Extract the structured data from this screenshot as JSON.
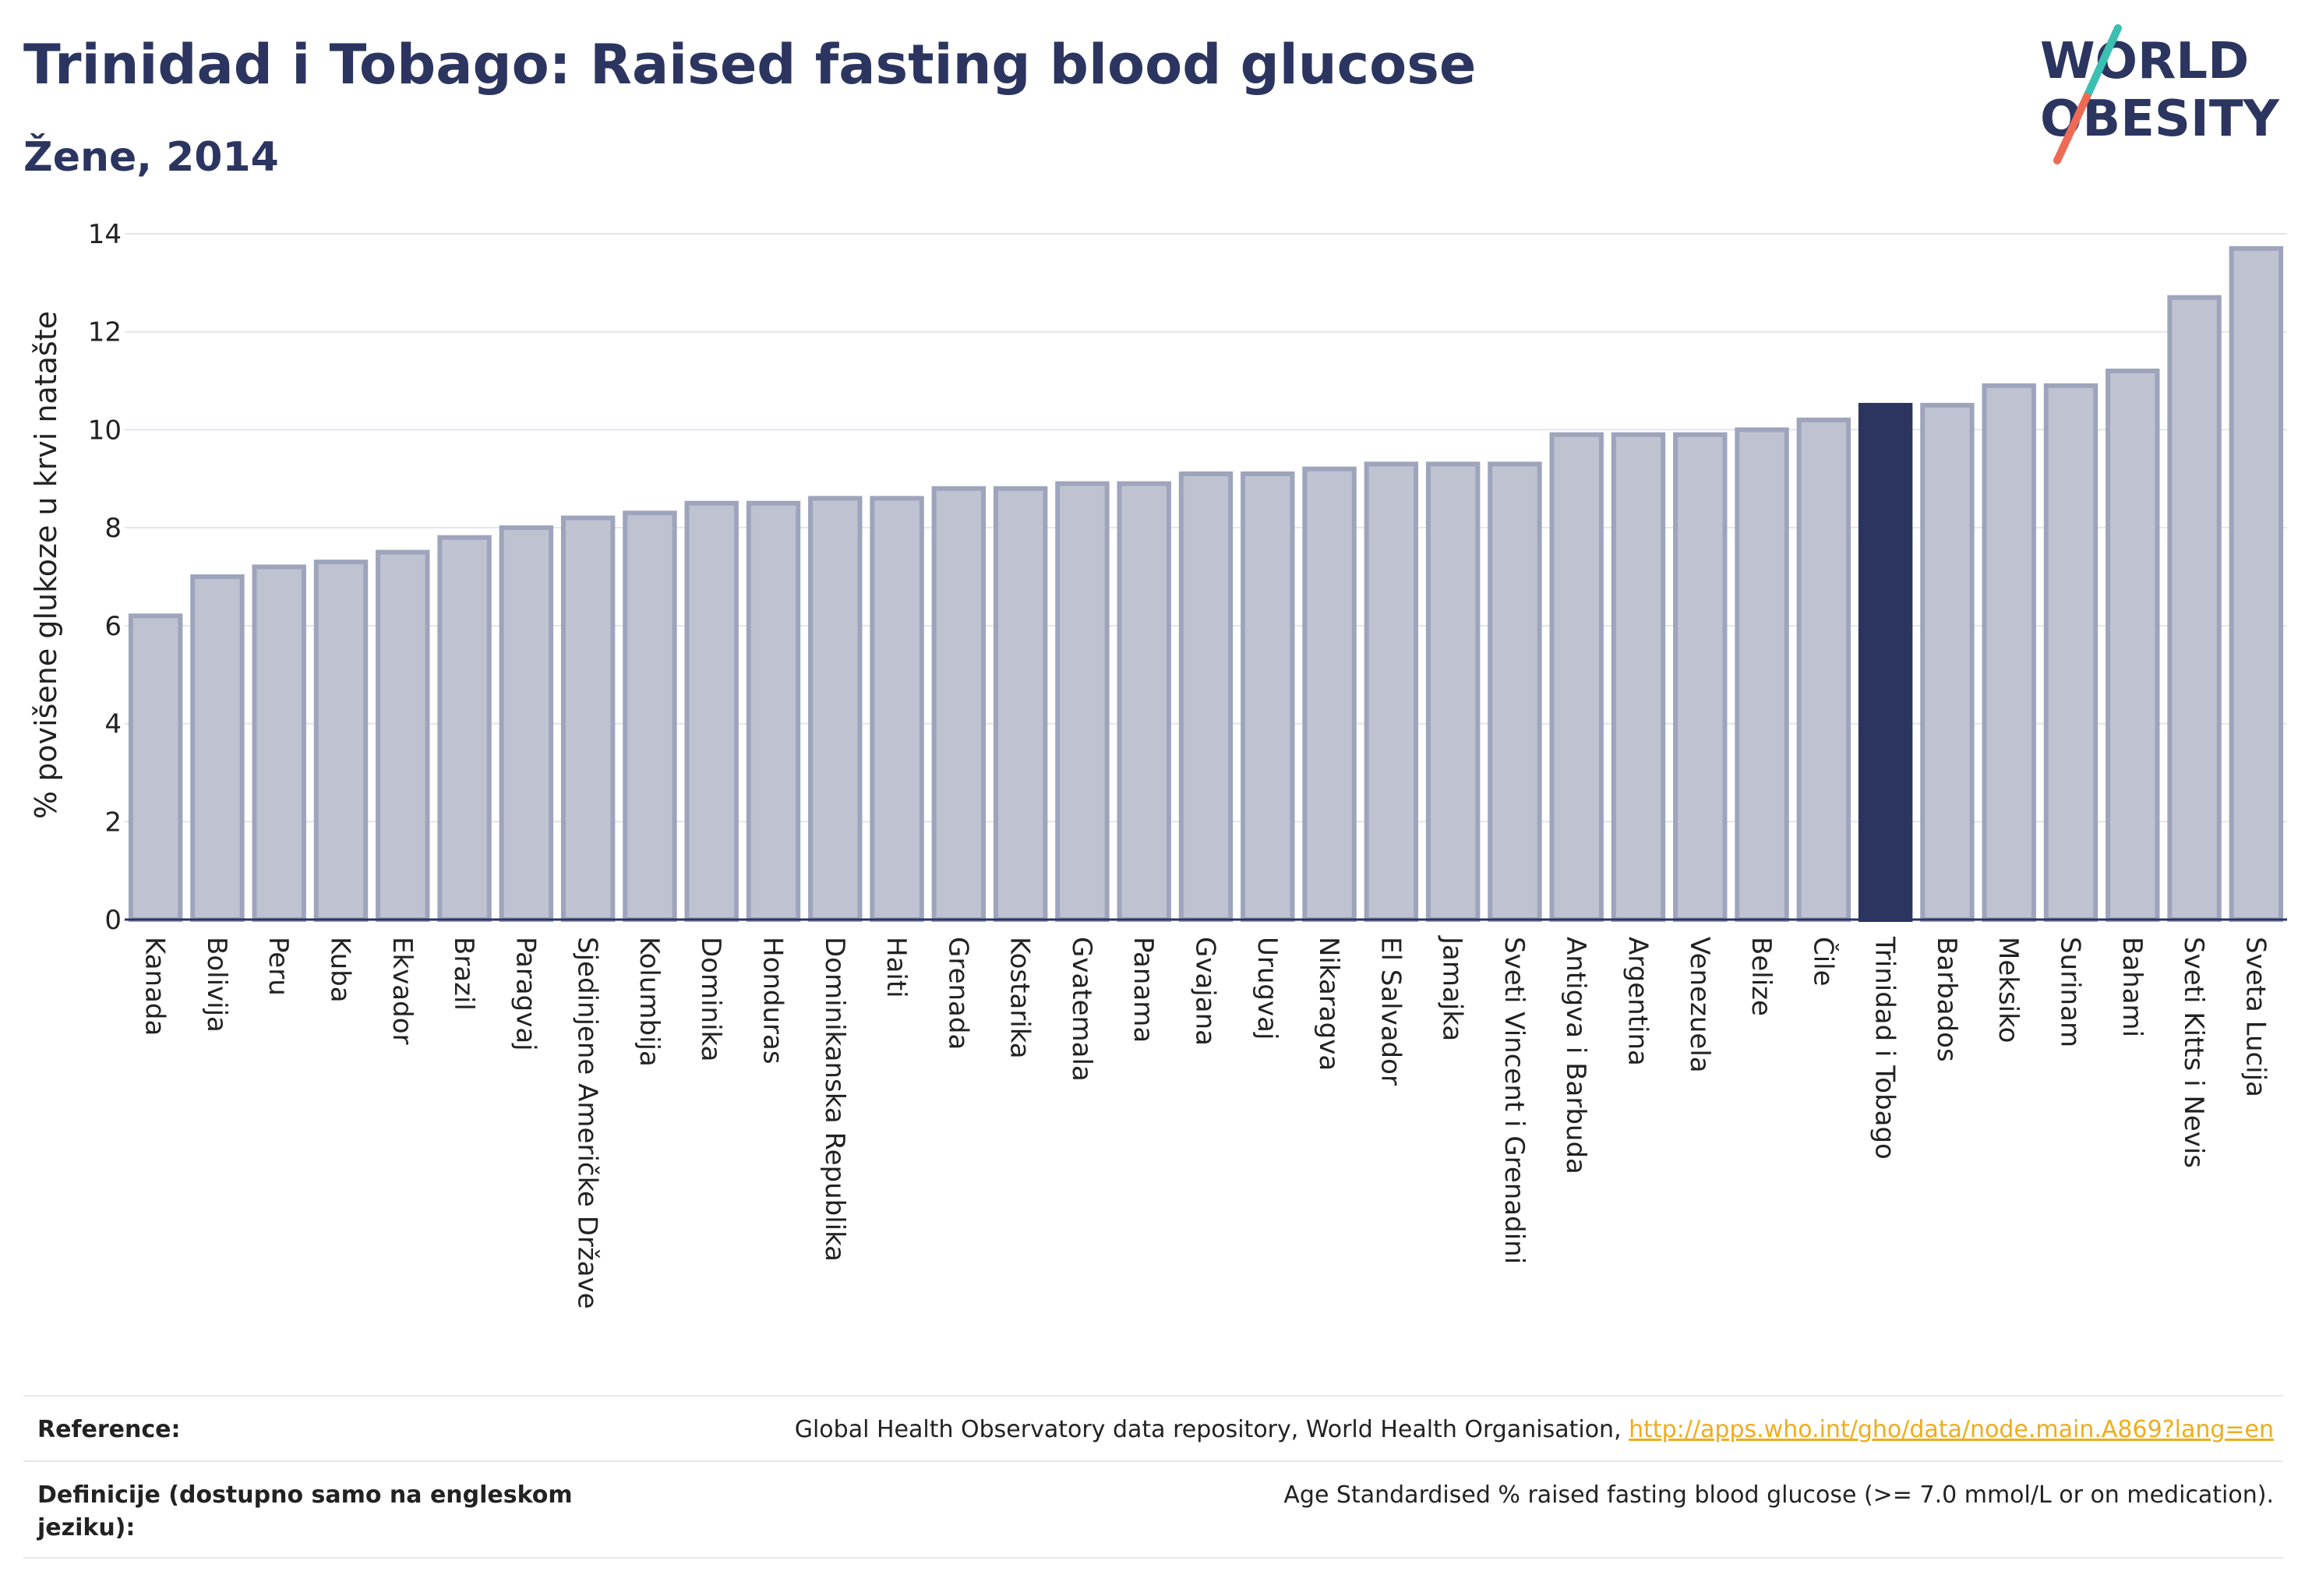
{
  "header": {
    "title": "Trinidad i Tobago: Raised fasting blood glucose",
    "subtitle": "Žene, 2014"
  },
  "logo": {
    "line1": "WORLD",
    "line2": "OBESITY",
    "slash_color_top": "#3bbfb0",
    "slash_color_bottom": "#ee6a54"
  },
  "colors": {
    "bar_fill": "#bfc3d1",
    "bar_stroke": "#9ea4bb",
    "highlight_fill": "#2b3560",
    "text_dark": "#2b3560",
    "link": "#f0ac1b"
  },
  "chart_data": {
    "type": "bar",
    "ylabel": "% povišene glukoze u krvi natašte",
    "ylim": [
      0,
      14
    ],
    "yticks": [
      0,
      2,
      4,
      6,
      8,
      10,
      12,
      14
    ],
    "grid": true,
    "highlight": "Trinidad i Tobago",
    "categories": [
      "Kanada",
      "Bolivija",
      "Peru",
      "Kuba",
      "Ekvador",
      "Brazil",
      "Paragvaj",
      "Sjedinjene Američke Države",
      "Kolumbija",
      "Dominika",
      "Honduras",
      "Dominikanska Republika",
      "Haiti",
      "Grenada",
      "Kostarika",
      "Gvatemala",
      "Panama",
      "Gvajana",
      "Urugvaj",
      "Nikaragva",
      "El Salvador",
      "Jamajka",
      "Sveti Vincent i Grenadini",
      "Antigva i Barbuda",
      "Argentina",
      "Venezuela",
      "Belize",
      "Čile",
      "Trinidad i Tobago",
      "Barbados",
      "Meksiko",
      "Surinam",
      "Bahami",
      "Sveti Kitts i Nevis",
      "Sveta Lucija"
    ],
    "values": [
      6.2,
      7.0,
      7.2,
      7.3,
      7.5,
      7.8,
      8.0,
      8.2,
      8.3,
      8.5,
      8.5,
      8.6,
      8.6,
      8.8,
      8.8,
      8.9,
      8.9,
      9.1,
      9.1,
      9.2,
      9.3,
      9.3,
      9.3,
      9.9,
      9.9,
      9.9,
      10.0,
      10.2,
      10.5,
      10.5,
      10.9,
      10.9,
      11.2,
      12.7,
      13.7
    ]
  },
  "footer": {
    "reference_label": "Reference:",
    "reference_text": "Global Health Observatory data repository, World Health Organisation, ",
    "reference_link": "http://apps.who.int/gho/data/node.main.A869?lang=en",
    "definition_label": "Definicije (dostupno samo na engleskom jeziku):",
    "definition_text": "Age Standardised % raised fasting blood glucose (>= 7.0 mmol/L or on medication)."
  }
}
